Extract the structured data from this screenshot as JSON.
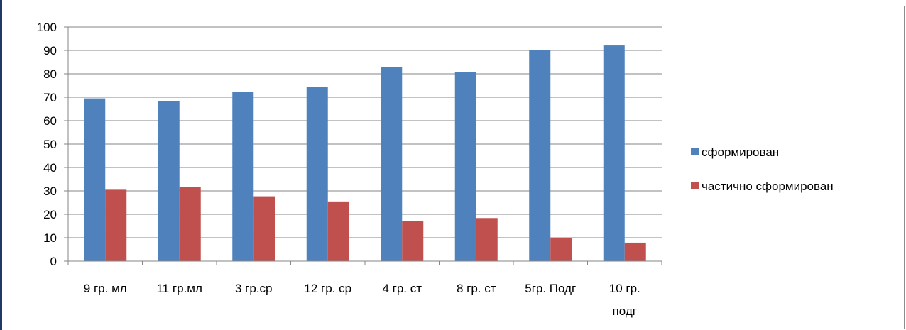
{
  "chart_data": {
    "type": "bar",
    "categories": [
      "9 гр. мл",
      "11 гр.мл",
      "3 гр.ср",
      "12 гр. ср",
      "4 гр. ст",
      "8 гр. ст",
      "5гр. Подг",
      "10 гр. подг"
    ],
    "series": [
      {
        "name": "сформирован",
        "color": "#4f81bd",
        "values": [
          69.5,
          68.3,
          72.3,
          74.5,
          82.8,
          80.7,
          90.3,
          92.1
        ]
      },
      {
        "name": "частично сформирован",
        "color": "#c0504d",
        "values": [
          30.5,
          31.7,
          27.7,
          25.5,
          17.2,
          18.4,
          9.7,
          7.9
        ]
      }
    ],
    "ylim": [
      0,
      100
    ],
    "yticks": [
      0,
      10,
      20,
      30,
      40,
      50,
      60,
      70,
      80,
      90,
      100
    ],
    "grid": true,
    "legend_position": "right",
    "title": "",
    "xlabel": "",
    "ylabel": ""
  }
}
